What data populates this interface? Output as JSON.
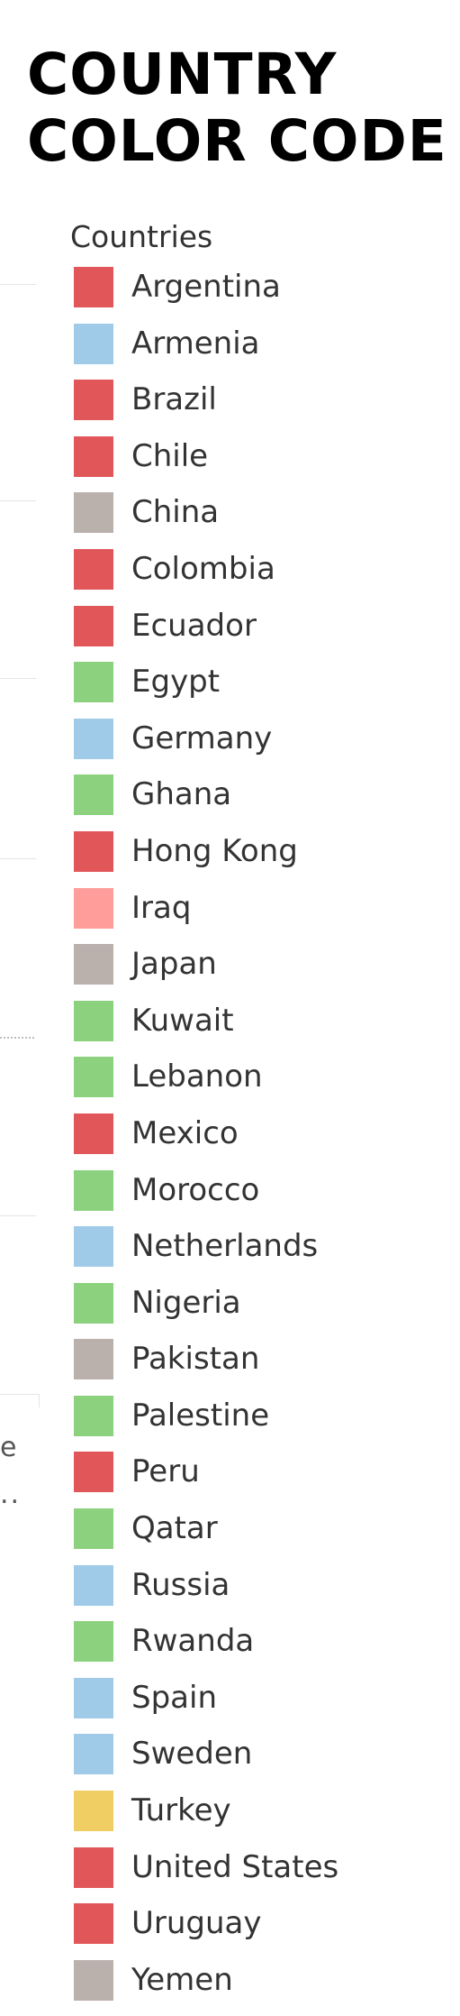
{
  "title": {
    "line1": "COUNTRY",
    "line2": "COLOR CODE"
  },
  "left_fragments": {
    "text1": "e",
    "text2": ".."
  },
  "legend": {
    "title": "Countries",
    "items": [
      {
        "label": "Argentina",
        "color": "#e15759"
      },
      {
        "label": "Armenia",
        "color": "#a0cbe8"
      },
      {
        "label": "Brazil",
        "color": "#e15759"
      },
      {
        "label": "Chile",
        "color": "#e15759"
      },
      {
        "label": "China",
        "color": "#bab0ac"
      },
      {
        "label": "Colombia",
        "color": "#e15759"
      },
      {
        "label": "Ecuador",
        "color": "#e15759"
      },
      {
        "label": "Egypt",
        "color": "#8cd17d"
      },
      {
        "label": "Germany",
        "color": "#a0cbe8"
      },
      {
        "label": "Ghana",
        "color": "#8cd17d"
      },
      {
        "label": "Hong Kong",
        "color": "#e15759"
      },
      {
        "label": "Iraq",
        "color": "#ff9d9a"
      },
      {
        "label": "Japan",
        "color": "#bab0ac"
      },
      {
        "label": "Kuwait",
        "color": "#8cd17d"
      },
      {
        "label": "Lebanon",
        "color": "#8cd17d"
      },
      {
        "label": "Mexico",
        "color": "#e15759"
      },
      {
        "label": "Morocco",
        "color": "#8cd17d"
      },
      {
        "label": "Netherlands",
        "color": "#a0cbe8"
      },
      {
        "label": "Nigeria",
        "color": "#8cd17d"
      },
      {
        "label": "Pakistan",
        "color": "#bab0ac"
      },
      {
        "label": "Palestine",
        "color": "#8cd17d"
      },
      {
        "label": "Peru",
        "color": "#e15759"
      },
      {
        "label": "Qatar",
        "color": "#8cd17d"
      },
      {
        "label": "Russia",
        "color": "#a0cbe8"
      },
      {
        "label": "Rwanda",
        "color": "#8cd17d"
      },
      {
        "label": "Spain",
        "color": "#a0cbe8"
      },
      {
        "label": "Sweden",
        "color": "#a0cbe8"
      },
      {
        "label": "Turkey",
        "color": "#f1ce63"
      },
      {
        "label": "United States",
        "color": "#e15759"
      },
      {
        "label": "Uruguay",
        "color": "#e15759"
      },
      {
        "label": "Yemen",
        "color": "#bab0ac"
      }
    ]
  }
}
